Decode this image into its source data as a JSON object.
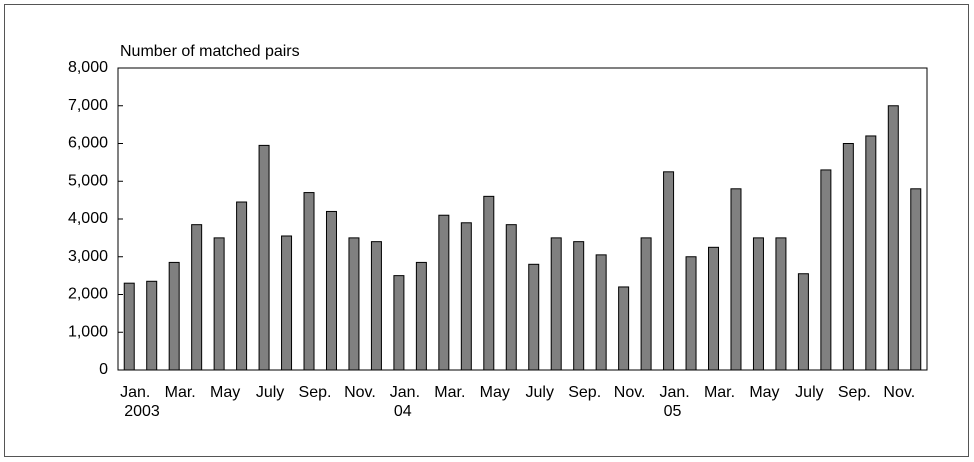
{
  "chart_data": {
    "type": "bar",
    "y_label": "Number of matched pairs",
    "categories": [
      "Jan.",
      null,
      "Mar.",
      null,
      "May",
      null,
      "July",
      null,
      "Sep.",
      null,
      "Nov.",
      null,
      "Jan.",
      null,
      "Mar.",
      null,
      "May",
      null,
      "July",
      null,
      "Sep.",
      null,
      "Nov.",
      null,
      "Jan.",
      null,
      "Mar.",
      null,
      "May",
      null,
      "July",
      null,
      "Sep.",
      null,
      "Nov.",
      null
    ],
    "year_labels": [
      "2003",
      null,
      null,
      null,
      null,
      null,
      null,
      null,
      null,
      null,
      null,
      null,
      "04",
      null,
      null,
      null,
      null,
      null,
      null,
      null,
      null,
      null,
      null,
      null,
      "05",
      null,
      null,
      null,
      null,
      null,
      null,
      null,
      null,
      null,
      null,
      null
    ],
    "values": [
      2300,
      2350,
      2850,
      3850,
      3500,
      4450,
      5950,
      3550,
      4700,
      4200,
      3500,
      3400,
      2500,
      2850,
      4100,
      3900,
      4600,
      3850,
      2800,
      3500,
      3400,
      3050,
      2200,
      3500,
      5250,
      3000,
      3250,
      4800,
      3500,
      3500,
      2550,
      5300,
      6000,
      6200,
      7000,
      4800
    ],
    "color": "#808080",
    "ylim": [
      0,
      8000
    ],
    "yticks": [
      0,
      {
        "value": 1000,
        "label": "1,000"
      },
      {
        "value": 2000,
        "label": "2,000"
      },
      {
        "value": 3000,
        "label": "3,000"
      },
      {
        "value": 4000,
        "label": "4,000"
      },
      {
        "value": 5000,
        "label": "5,000"
      },
      {
        "value": 6000,
        "label": "6,000"
      },
      {
        "value": 7000,
        "label": "7,000"
      },
      {
        "value": 8000,
        "label": "8,000"
      }
    ],
    "grid": false
  }
}
